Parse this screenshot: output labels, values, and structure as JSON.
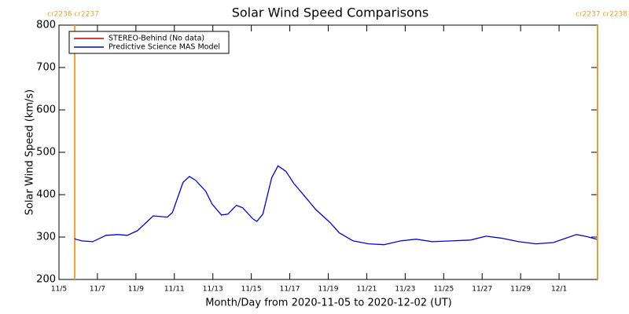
{
  "chart_data": {
    "type": "line",
    "title": "Solar Wind Speed Comparisons",
    "x_label": "Month/Day from 2020-11-05 to 2020-12-02 (UT)",
    "y_label": "Solar Wind Speed (km/s)",
    "xlim": [
      0,
      28
    ],
    "ylim": [
      200,
      800
    ],
    "yticks": [
      200,
      300,
      400,
      500,
      600,
      700,
      800
    ],
    "xticks": [
      {
        "value": 0,
        "label": "11/5"
      },
      {
        "value": 2,
        "label": "11/7"
      },
      {
        "value": 4,
        "label": "11/9"
      },
      {
        "value": 6,
        "label": "11/11"
      },
      {
        "value": 8,
        "label": "11/13"
      },
      {
        "value": 10,
        "label": "11/15"
      },
      {
        "value": 12,
        "label": "11/17"
      },
      {
        "value": 14,
        "label": "11/19"
      },
      {
        "value": 16,
        "label": "11/21"
      },
      {
        "value": 18,
        "label": "11/23"
      },
      {
        "value": 20,
        "label": "11/25"
      },
      {
        "value": 22,
        "label": "11/27"
      },
      {
        "value": 24,
        "label": "11/29"
      },
      {
        "value": 26,
        "label": "12/1"
      }
    ],
    "x": [
      0.82,
      0.86,
      1.2,
      1.75,
      2.45,
      3.06,
      3.55,
      4.08,
      4.9,
      5.63,
      5.9,
      6.45,
      6.78,
      7.1,
      7.63,
      7.96,
      8.45,
      8.78,
      9.22,
      9.55,
      10.08,
      10.29,
      10.6,
      11.06,
      11.39,
      11.8,
      12.2,
      12.8,
      13.35,
      14.1,
      14.57,
      15.3,
      16.1,
      16.9,
      17.76,
      18.57,
      19.4,
      20.4,
      21.4,
      22.2,
      23.06,
      23.9,
      24.8,
      25.7,
      26.9,
      27.35,
      27.96
    ],
    "series": [
      {
        "name": "STEREO-Behind (No data)",
        "color": "#c00000",
        "values": [
          null,
          null,
          null,
          null,
          null,
          null,
          null,
          null,
          null,
          null,
          null,
          null,
          null,
          null,
          null,
          null,
          null,
          null,
          null,
          null,
          null,
          null,
          null,
          null,
          null,
          null,
          null,
          null,
          null,
          null,
          null,
          null,
          null,
          null,
          null,
          null,
          null,
          null,
          null,
          null,
          null,
          null,
          null,
          null,
          null,
          null,
          null
        ]
      },
      {
        "name": "Predictive Science MAS Model",
        "color": "#0000e0",
        "values": [
          297,
          295,
          291,
          289,
          304,
          306,
          304,
          315,
          350,
          347,
          358,
          429,
          443,
          434,
          408,
          378,
          352,
          354,
          375,
          369,
          343,
          337,
          354,
          440,
          468,
          455,
          427,
          395,
          365,
          334,
          310,
          291,
          284,
          282,
          291,
          295,
          289,
          291,
          293,
          302,
          297,
          289,
          284,
          287,
          306,
          302,
          295
        ]
      }
    ],
    "annotations": [
      {
        "x": 0.82,
        "label": "cr2236 cr2237",
        "color": "#f0a030"
      },
      {
        "x": 28,
        "label": "cr2237 cr2238",
        "color": "#f0a030"
      }
    ]
  }
}
